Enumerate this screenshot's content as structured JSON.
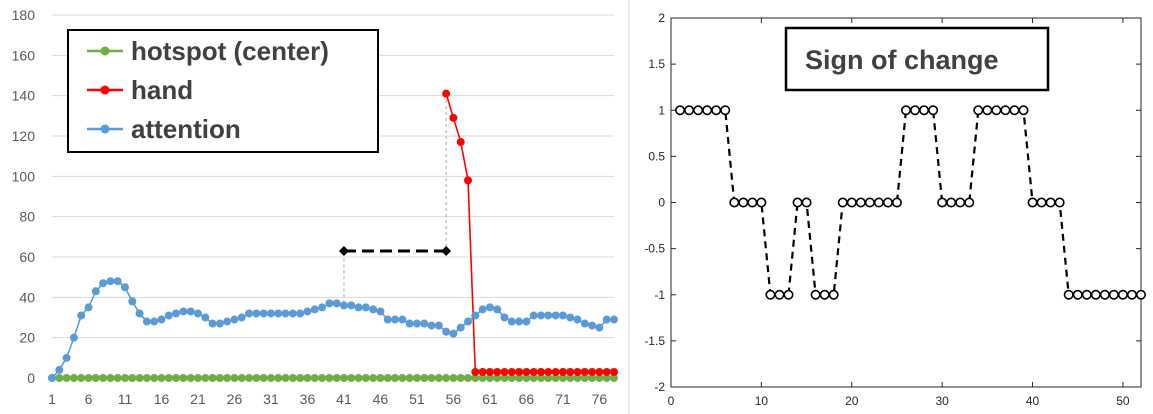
{
  "chart_data": [
    {
      "type": "line",
      "title": "",
      "xlabel": "",
      "ylabel": "",
      "ylim": [
        0,
        180
      ],
      "yticks": [
        0,
        20,
        40,
        60,
        80,
        100,
        120,
        140,
        160,
        180
      ],
      "xlim": [
        1,
        78
      ],
      "xticks": [
        1,
        6,
        11,
        16,
        21,
        26,
        31,
        36,
        41,
        46,
        51,
        56,
        61,
        66,
        71,
        76
      ],
      "grid": "horizontal",
      "legend_position": "top-left",
      "legend": [
        "hotspot (center)",
        "hand",
        "attention"
      ],
      "series": [
        {
          "name": "hotspot (center)",
          "color": "#70ad47",
          "x": [
            1,
            2,
            3,
            4,
            5,
            6,
            7,
            8,
            9,
            10,
            11,
            12,
            13,
            14,
            15,
            16,
            17,
            18,
            19,
            20,
            21,
            22,
            23,
            24,
            25,
            26,
            27,
            28,
            29,
            30,
            31,
            32,
            33,
            34,
            35,
            36,
            37,
            38,
            39,
            40,
            41,
            42,
            43,
            44,
            45,
            46,
            47,
            48,
            49,
            50,
            51,
            52,
            53,
            54,
            55,
            56,
            57,
            58,
            59,
            60,
            61,
            62,
            63,
            64,
            65,
            66,
            67,
            68,
            69,
            70,
            71,
            72,
            73,
            74,
            75,
            76,
            77,
            78
          ],
          "values": [
            0,
            0,
            0,
            0,
            0,
            0,
            0,
            0,
            0,
            0,
            0,
            0,
            0,
            0,
            0,
            0,
            0,
            0,
            0,
            0,
            0,
            0,
            0,
            0,
            0,
            0,
            0,
            0,
            0,
            0,
            0,
            0,
            0,
            0,
            0,
            0,
            0,
            0,
            0,
            0,
            0,
            0,
            0,
            0,
            0,
            0,
            0,
            0,
            0,
            0,
            0,
            0,
            0,
            0,
            0,
            0,
            0,
            0,
            0,
            0,
            0,
            0,
            0,
            0,
            0,
            0,
            0,
            0,
            0,
            0,
            0,
            0,
            0,
            0,
            0,
            0,
            0,
            0
          ]
        },
        {
          "name": "hand",
          "color": "#ff0000",
          "x": [
            55,
            56,
            57,
            58,
            59,
            60,
            61,
            62,
            63,
            64,
            65,
            66,
            67,
            68,
            69,
            70,
            71,
            72,
            73,
            74,
            75,
            76,
            77,
            78
          ],
          "values": [
            141,
            129,
            117,
            98,
            3,
            3,
            3,
            3,
            3,
            3,
            3,
            3,
            3,
            3,
            3,
            3,
            3,
            3,
            3,
            3,
            3,
            3,
            3,
            3
          ]
        },
        {
          "name": "attention",
          "color": "#5b9bd5",
          "x": [
            1,
            2,
            3,
            4,
            5,
            6,
            7,
            8,
            9,
            10,
            11,
            12,
            13,
            14,
            15,
            16,
            17,
            18,
            19,
            20,
            21,
            22,
            23,
            24,
            25,
            26,
            27,
            28,
            29,
            30,
            31,
            32,
            33,
            34,
            35,
            36,
            37,
            38,
            39,
            40,
            41,
            42,
            43,
            44,
            45,
            46,
            47,
            48,
            49,
            50,
            51,
            52,
            53,
            54,
            55,
            56,
            57,
            58,
            59,
            60,
            61,
            62,
            63,
            64,
            65,
            66,
            67,
            68,
            69,
            70,
            71,
            72,
            73,
            74,
            75,
            76,
            77,
            78
          ],
          "values": [
            0,
            4,
            10,
            20,
            31,
            35,
            43,
            47,
            48,
            48,
            45,
            38,
            32,
            28,
            28,
            29,
            31,
            32,
            33,
            33,
            32,
            30,
            27,
            27,
            28,
            29,
            30,
            32,
            32,
            32,
            32,
            32,
            32,
            32,
            32,
            33,
            34,
            35,
            37,
            37,
            36,
            36,
            35,
            35,
            34,
            33,
            29,
            29,
            29,
            27,
            27,
            27,
            26,
            26,
            23,
            22,
            25,
            28,
            31,
            34,
            35,
            34,
            30,
            28,
            28,
            28,
            31,
            31,
            31,
            31,
            31,
            30,
            29,
            27,
            26,
            25,
            29,
            29
          ]
        }
      ],
      "annotations": [
        {
          "type": "dashed-arrow",
          "color": "#000000",
          "from": [
            41,
            63
          ],
          "to": [
            55,
            63
          ]
        },
        {
          "type": "guide",
          "color": "#a6a6a6",
          "x": 41,
          "from_y": 37,
          "to_y": 63
        },
        {
          "type": "guide",
          "color": "#a6a6a6",
          "x": 55,
          "from_y": 62,
          "to_y": 141
        }
      ]
    },
    {
      "type": "line",
      "title": "Sign of change",
      "xlabel": "",
      "ylabel": "",
      "xlim": [
        0,
        52
      ],
      "xticks": [
        0,
        10,
        20,
        30,
        40,
        50
      ],
      "ylim": [
        -2,
        2
      ],
      "yticks": [
        2,
        1.5,
        1,
        0.5,
        0,
        -0.5,
        -1,
        -1.5,
        -2
      ],
      "ytick_labels": [
        "2",
        "1.5",
        "1",
        "0.5",
        "0",
        "-0.5",
        "-1",
        "-1.5",
        "-2"
      ],
      "grid": "off",
      "series": [
        {
          "color": "#000000",
          "x": [
            1,
            2,
            3,
            4,
            5,
            6,
            7,
            8,
            9,
            10,
            11,
            12,
            13,
            14,
            15,
            16,
            17,
            18,
            19,
            20,
            21,
            22,
            23,
            24,
            25,
            26,
            27,
            28,
            29,
            30,
            31,
            32,
            33,
            34,
            35,
            36,
            37,
            38,
            39,
            40,
            41,
            42,
            43,
            44,
            45,
            46,
            47,
            48,
            49,
            50,
            51,
            52
          ],
          "values": [
            1,
            1,
            1,
            1,
            1,
            1,
            0,
            0,
            0,
            0,
            -1,
            -1,
            -1,
            0,
            0,
            -1,
            -1,
            -1,
            0,
            0,
            0,
            0,
            0,
            0,
            0,
            1,
            1,
            1,
            1,
            0,
            0,
            0,
            0,
            1,
            1,
            1,
            1,
            1,
            1,
            0,
            0,
            0,
            0,
            -1,
            -1,
            -1,
            -1,
            -1,
            -1,
            -1,
            -1,
            -1
          ]
        }
      ]
    }
  ],
  "ui": {
    "legend_labels": [
      "hotspot (center)",
      "hand",
      "attention"
    ],
    "right_title": "Sign of change"
  }
}
